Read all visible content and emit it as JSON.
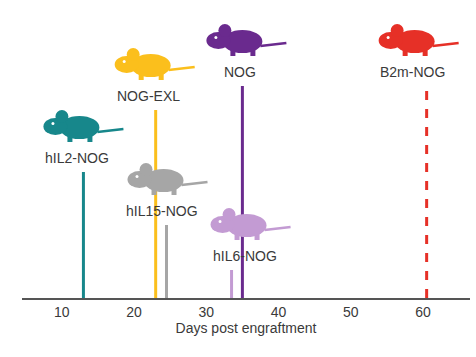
{
  "chart_data": {
    "type": "timeline",
    "x_label": "Days post engraftment",
    "xlim": [
      4.5,
      66.5
    ],
    "xticks": [
      10,
      20,
      30,
      40,
      50,
      60
    ],
    "tick_labels": "x",
    "grid": false,
    "series": [
      {
        "name": "hIL2-NOG",
        "color": "#17878b",
        "values": [
          13
        ],
        "line_style": "solid"
      },
      {
        "name": "NOG-EXL",
        "color": "#fbbf1c",
        "values": [
          23
        ],
        "line_style": "solid"
      },
      {
        "name": "hIL15-NOG",
        "color": "#a6a6a6",
        "values": [
          24.5
        ],
        "line_style": "solid"
      },
      {
        "name": "hIL6-NOG",
        "color": "#c39bd3",
        "values": [
          33.5
        ],
        "line_style": "solid"
      },
      {
        "name": "NOG",
        "color": "#6a2a8e",
        "values": [
          35
        ],
        "line_style": "solid"
      },
      {
        "name": "B2m-NOG",
        "color": "#e63027",
        "values": [
          60.5
        ],
        "line_style": "dashed"
      }
    ]
  }
}
